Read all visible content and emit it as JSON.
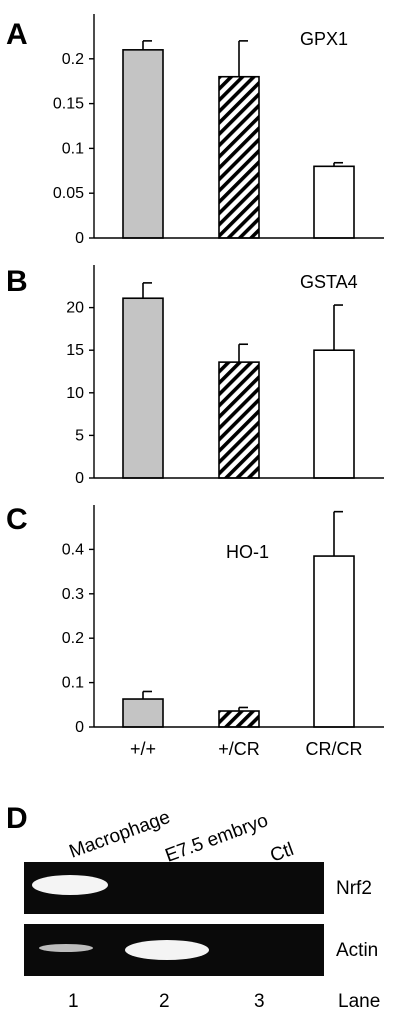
{
  "colors": {
    "wildtype_fill": "#c4c4c4",
    "heterozygous_pattern": "hatched",
    "homozygous_fill": "#ffffff",
    "gel_background": "#0a0a0a",
    "band": "#ffffff"
  },
  "chart_data": [
    {
      "type": "bar",
      "panel": "A",
      "title": "GPX1",
      "categories": [
        "+/+",
        "+/CR",
        "CR/CR"
      ],
      "values": [
        0.21,
        0.18,
        0.08
      ],
      "error": [
        0.01,
        0.04,
        0.004
      ],
      "ylim": [
        0,
        0.25
      ],
      "yticks": [
        0,
        0.05,
        0.1,
        0.15,
        0.2
      ],
      "ytick_labels": [
        "0",
        "0.05",
        "0.1",
        "0.15",
        "0.2"
      ],
      "show_category_labels": false
    },
    {
      "type": "bar",
      "panel": "B",
      "title": "GSTA4",
      "categories": [
        "+/+",
        "+/CR",
        "CR/CR"
      ],
      "values": [
        21.1,
        13.6,
        15.0
      ],
      "error": [
        1.8,
        2.1,
        5.3
      ],
      "ylim": [
        0,
        25
      ],
      "yticks": [
        0,
        5,
        10,
        15,
        20
      ],
      "ytick_labels": [
        "0",
        "5",
        "10",
        "15",
        "20"
      ],
      "show_category_labels": false
    },
    {
      "type": "bar",
      "panel": "C",
      "title": "HO-1",
      "categories": [
        "+/+",
        "+/CR",
        "CR/CR"
      ],
      "values": [
        0.063,
        0.036,
        0.385
      ],
      "error": [
        0.017,
        0.008,
        0.1
      ],
      "ylim": [
        0,
        0.5
      ],
      "yticks": [
        0,
        0.1,
        0.2,
        0.3,
        0.4
      ],
      "ytick_labels": [
        "0",
        "0.1",
        "0.2",
        "0.3",
        "0.4"
      ],
      "show_category_labels": true
    }
  ],
  "gel": {
    "panel": "D",
    "columns": [
      "Macrophage",
      "E7.5 embryo",
      "Ctl"
    ],
    "rows": [
      {
        "label": "Nrf2",
        "bands": [
          1.0,
          0,
          0
        ]
      },
      {
        "label": "Actin",
        "bands": [
          0.5,
          1.0,
          0
        ]
      }
    ],
    "lane_numbers": [
      "1",
      "2",
      "3"
    ],
    "lane_axis_label": "Lane"
  }
}
